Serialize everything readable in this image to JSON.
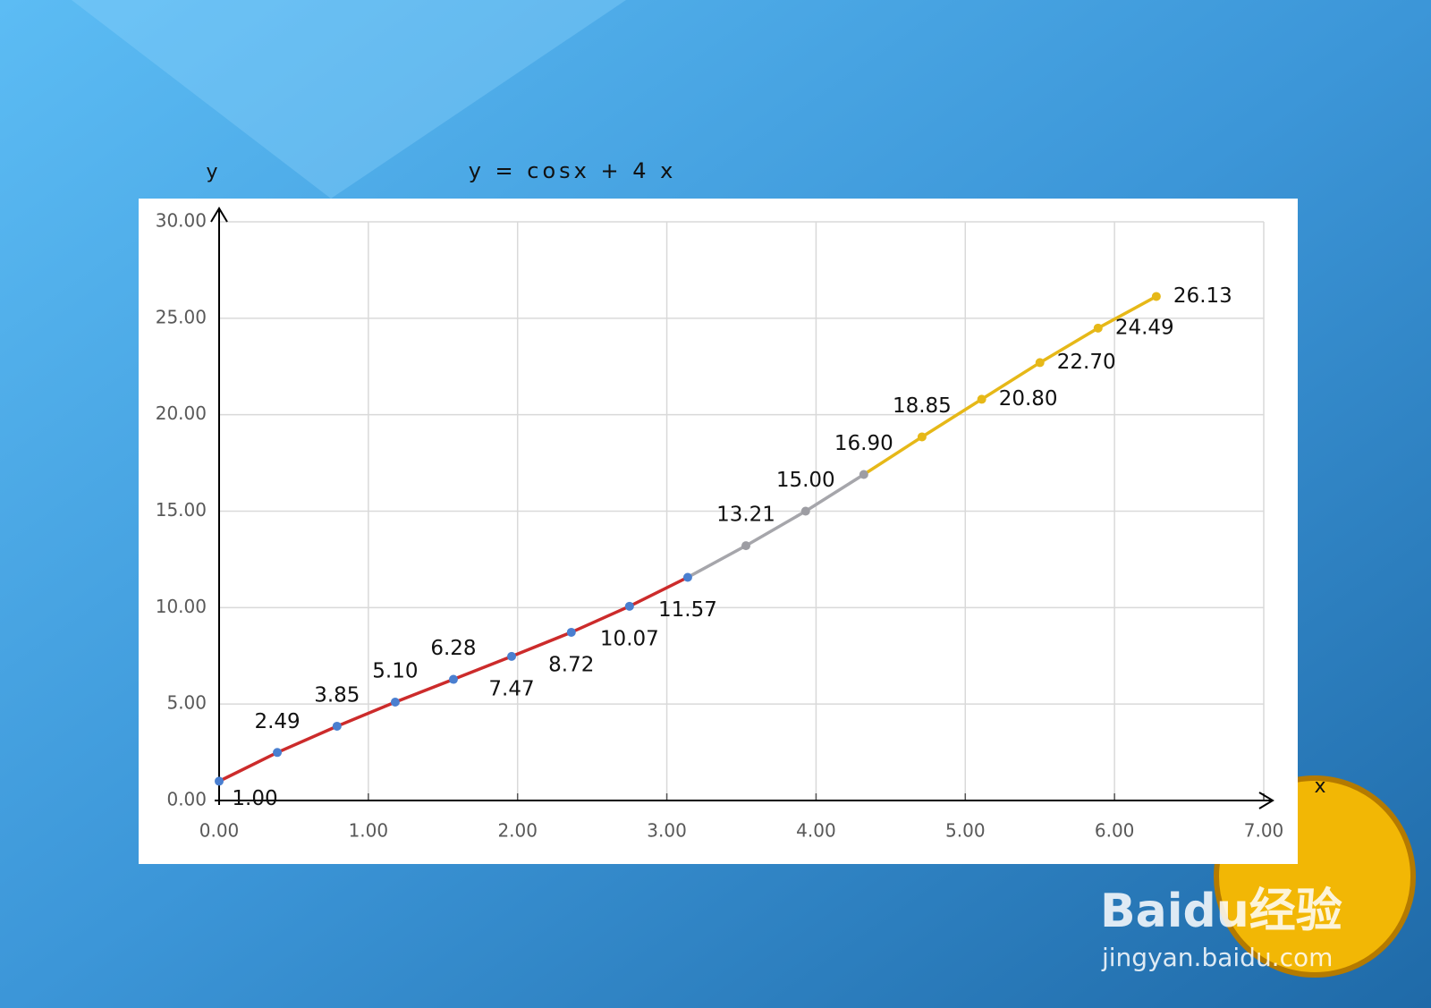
{
  "chart_data": {
    "type": "line",
    "title": "y = cosx + 4 x",
    "y_label": "y",
    "x_label": "x",
    "series": [
      {
        "color": "#cc2b2b",
        "marker_color": "#4a7fd0",
        "x": [
          0,
          0.39,
          0.79,
          1.18,
          1.57,
          1.96,
          2.36,
          2.75,
          3.14
        ],
        "values": [
          1.0,
          2.49,
          3.85,
          5.1,
          6.28,
          7.47,
          8.72,
          10.07,
          11.57
        ],
        "value_labels": [
          "1.00",
          "2.49",
          "3.85",
          "5.10",
          "6.28",
          "7.47",
          "8.72",
          "10.07",
          "11.57"
        ]
      },
      {
        "color": "#a6a6ab",
        "marker_color": "#9d9da3",
        "x": [
          3.53,
          3.93,
          4.32
        ],
        "values": [
          13.21,
          15.0,
          16.9
        ],
        "value_labels": [
          "13.21",
          "15.00",
          "16.90"
        ]
      },
      {
        "color": "#e6b818",
        "marker_color": "#e6b818",
        "x": [
          4.71,
          5.11,
          5.5,
          5.89,
          6.28
        ],
        "values": [
          18.85,
          20.8,
          22.7,
          24.49,
          26.13
        ],
        "value_labels": [
          "18.85",
          "20.80",
          "22.70",
          "24.49",
          "26.13"
        ]
      }
    ],
    "xlim": [
      0,
      7
    ],
    "xticks": [
      {
        "value": 0,
        "label": "0.00"
      },
      {
        "value": 1,
        "label": "1.00"
      },
      {
        "value": 2,
        "label": "2.00"
      },
      {
        "value": 3,
        "label": "3.00"
      },
      {
        "value": 4,
        "label": "4.00"
      },
      {
        "value": 5,
        "label": "5.00"
      },
      {
        "value": 6,
        "label": "6.00"
      },
      {
        "value": 7,
        "label": "7.00"
      }
    ],
    "ylim": [
      0,
      30
    ],
    "yticks": [
      {
        "value": 0,
        "label": "0.00"
      },
      {
        "value": 5,
        "label": "5.00"
      },
      {
        "value": 10,
        "label": "10.00"
      },
      {
        "value": 15,
        "label": "15.00"
      },
      {
        "value": 20,
        "label": "20.00"
      },
      {
        "value": 25,
        "label": "25.00"
      },
      {
        "value": 30,
        "label": "30.00"
      }
    ],
    "grid": true
  },
  "watermark": [
    "Baidu经验",
    "jingyan.baidu.com"
  ]
}
